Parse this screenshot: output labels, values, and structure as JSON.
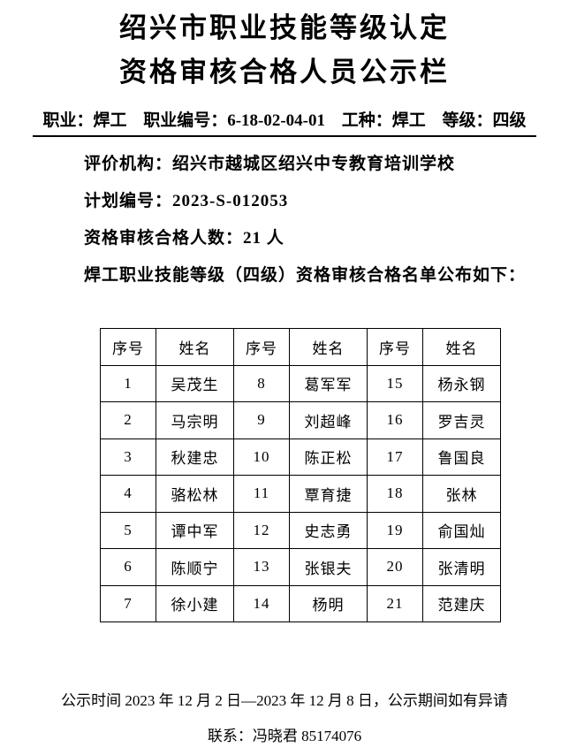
{
  "document": {
    "title_line1": "绍兴市职业技能等级认定",
    "title_line2": "资格审核合格人员公示栏",
    "info": {
      "segments": [
        "职业：焊工",
        "职业编号：6-18-02-04-01",
        "工种：焊工",
        "等级：四级"
      ]
    },
    "details": [
      "评价机构：绍兴市越城区绍兴中专教育培训学校",
      "计划编号：2023-S-012053",
      "资格审核合格人数：21 人",
      "焊工职业技能等级（四级）资格审核合格名单公布如下："
    ],
    "footer": {
      "notice": "公示时间 2023 年 12 月 2 日—2023 年 12 月 8 日，公示期间如有异请",
      "contact": "联系：冯晓君 85174076"
    },
    "colors": {
      "text": "#000000",
      "background": "#ffffff",
      "table_border": "#000000"
    }
  },
  "table": {
    "headers": [
      "序号",
      "姓名",
      "序号",
      "姓名",
      "序号",
      "姓名"
    ],
    "rows": [
      [
        "1",
        "吴茂生",
        "8",
        "葛军军",
        "15",
        "杨永钢"
      ],
      [
        "2",
        "马宗明",
        "9",
        "刘超峰",
        "16",
        "罗吉灵"
      ],
      [
        "3",
        "秋建忠",
        "10",
        "陈正松",
        "17",
        "鲁国良"
      ],
      [
        "4",
        "骆松林",
        "11",
        "覃育捷",
        "18",
        "张林"
      ],
      [
        "5",
        "谭中军",
        "12",
        "史志勇",
        "19",
        "俞国灿"
      ],
      [
        "6",
        "陈顺宁",
        "13",
        "张银夫",
        "20",
        "张清明"
      ],
      [
        "7",
        "徐小建",
        "14",
        "杨明",
        "21",
        "范建庆"
      ]
    ]
  }
}
